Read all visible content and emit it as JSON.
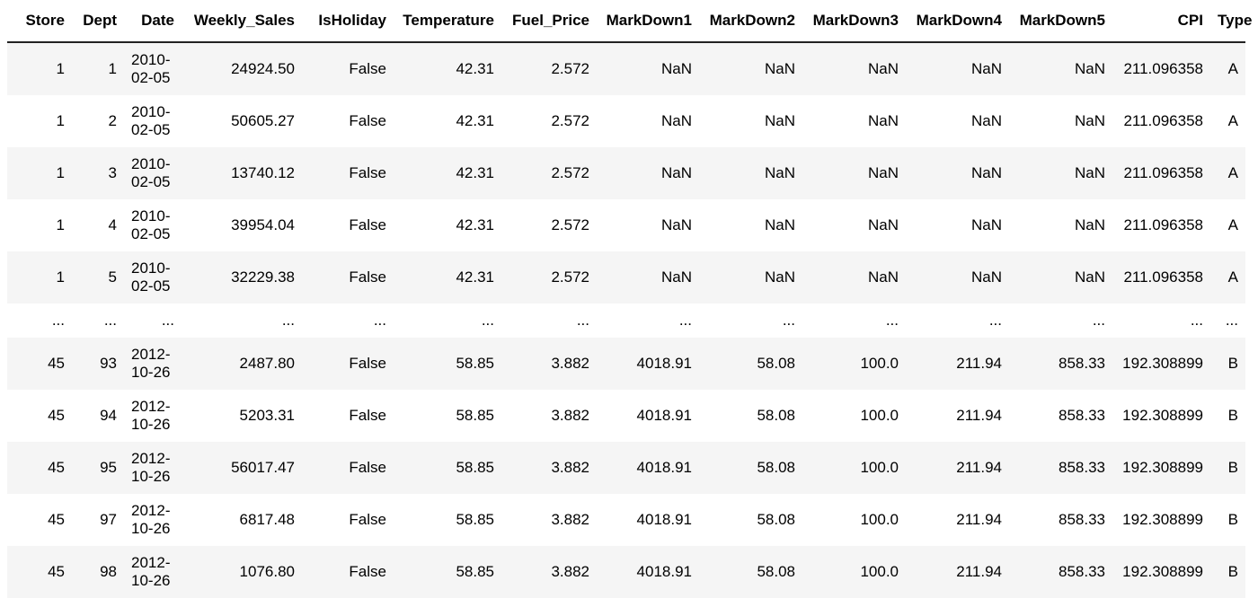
{
  "table": {
    "columns": [
      "Store",
      "Dept",
      "Date",
      "Weekly_Sales",
      "IsHoliday",
      "Temperature",
      "Fuel_Price",
      "MarkDown1",
      "MarkDown2",
      "MarkDown3",
      "MarkDown4",
      "MarkDown5",
      "CPI",
      "Type"
    ],
    "rows": [
      [
        "1",
        "1",
        "2010-02-05",
        "24924.50",
        "False",
        "42.31",
        "2.572",
        "NaN",
        "NaN",
        "NaN",
        "NaN",
        "NaN",
        "211.096358",
        "A"
      ],
      [
        "1",
        "2",
        "2010-02-05",
        "50605.27",
        "False",
        "42.31",
        "2.572",
        "NaN",
        "NaN",
        "NaN",
        "NaN",
        "NaN",
        "211.096358",
        "A"
      ],
      [
        "1",
        "3",
        "2010-02-05",
        "13740.12",
        "False",
        "42.31",
        "2.572",
        "NaN",
        "NaN",
        "NaN",
        "NaN",
        "NaN",
        "211.096358",
        "A"
      ],
      [
        "1",
        "4",
        "2010-02-05",
        "39954.04",
        "False",
        "42.31",
        "2.572",
        "NaN",
        "NaN",
        "NaN",
        "NaN",
        "NaN",
        "211.096358",
        "A"
      ],
      [
        "1",
        "5",
        "2010-02-05",
        "32229.38",
        "False",
        "42.31",
        "2.572",
        "NaN",
        "NaN",
        "NaN",
        "NaN",
        "NaN",
        "211.096358",
        "A"
      ],
      [
        "...",
        "...",
        "...",
        "...",
        "...",
        "...",
        "...",
        "...",
        "...",
        "...",
        "...",
        "...",
        "...",
        "..."
      ],
      [
        "45",
        "93",
        "2012-10-26",
        "2487.80",
        "False",
        "58.85",
        "3.882",
        "4018.91",
        "58.08",
        "100.0",
        "211.94",
        "858.33",
        "192.308899",
        "B"
      ],
      [
        "45",
        "94",
        "2012-10-26",
        "5203.31",
        "False",
        "58.85",
        "3.882",
        "4018.91",
        "58.08",
        "100.0",
        "211.94",
        "858.33",
        "192.308899",
        "B"
      ],
      [
        "45",
        "95",
        "2012-10-26",
        "56017.47",
        "False",
        "58.85",
        "3.882",
        "4018.91",
        "58.08",
        "100.0",
        "211.94",
        "858.33",
        "192.308899",
        "B"
      ],
      [
        "45",
        "97",
        "2012-10-26",
        "6817.48",
        "False",
        "58.85",
        "3.882",
        "4018.91",
        "58.08",
        "100.0",
        "211.94",
        "858.33",
        "192.308899",
        "B"
      ],
      [
        "45",
        "98",
        "2012-10-26",
        "1076.80",
        "False",
        "58.85",
        "3.882",
        "4018.91",
        "58.08",
        "100.0",
        "211.94",
        "858.33",
        "192.308899",
        "B"
      ]
    ]
  }
}
